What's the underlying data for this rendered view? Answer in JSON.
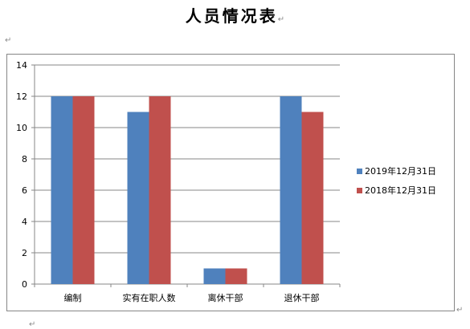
{
  "document": {
    "title": "人员情况表",
    "paragraph_mark": "↵"
  },
  "chart_data": {
    "type": "bar",
    "title": "",
    "xlabel": "",
    "ylabel": "",
    "categories": [
      "编制",
      "实有在职人数",
      "离休干部",
      "退休干部"
    ],
    "series": [
      {
        "name": "2019年12月31日",
        "values": [
          12,
          11,
          1,
          12
        ]
      },
      {
        "name": "2018年12月31日",
        "values": [
          12,
          12,
          1,
          11
        ]
      }
    ],
    "ylim": [
      0,
      14
    ],
    "yticks": [
      0,
      2,
      4,
      6,
      8,
      10,
      12,
      14
    ],
    "grid": true,
    "legend_position": "right",
    "colors": [
      "#4f81bd",
      "#c0504d"
    ]
  }
}
